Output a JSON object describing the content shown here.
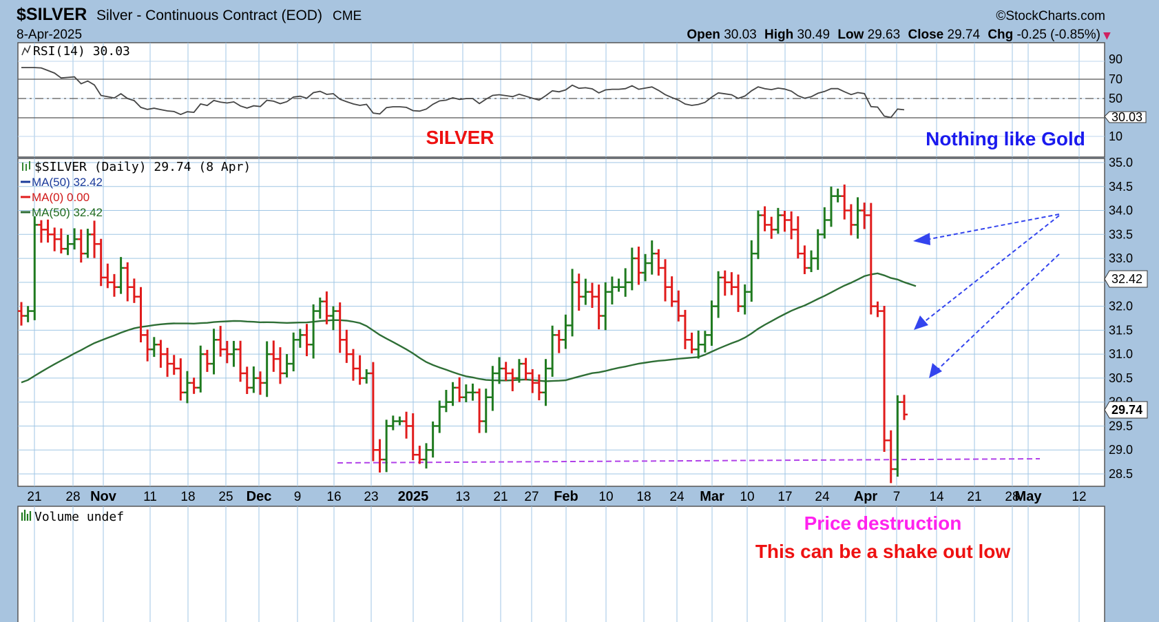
{
  "header": {
    "symbol": "$SILVER",
    "name": "Silver - Continuous Contract (EOD)",
    "exchange": "CME",
    "date": "8-Apr-2025",
    "copyright": "©StockCharts.com",
    "ohlc": {
      "open_label": "Open",
      "open": "30.03",
      "high_label": "High",
      "high": "30.49",
      "low_label": "Low",
      "low": "29.63",
      "close_label": "Close",
      "close": "29.74",
      "chg_label": "Chg",
      "chg": "-0.25 (-0.85%)",
      "down_arrow": "▼"
    }
  },
  "rsi_panel": {
    "legend": "RSI(14) 30.03",
    "last_value": "30.03",
    "ticks": [
      "90",
      "70",
      "50",
      "10"
    ]
  },
  "price_panel": {
    "legend_main": "$SILVER (Daily) 29.74 (8 Apr)",
    "legend_ma1": "MA(50) 32.42",
    "legend_ma2": "MA(0) 0.00",
    "legend_ma3": "MA(50) 32.42",
    "last_ma": "32.42",
    "last_close": "29.74",
    "ticks": [
      "35.0",
      "34.5",
      "34.0",
      "33.5",
      "33.0",
      "32.5",
      "32.0",
      "31.5",
      "31.0",
      "30.5",
      "30.0",
      "29.5",
      "29.0",
      "28.5"
    ]
  },
  "volume_panel": {
    "legend": "Volume undef"
  },
  "annotations": {
    "silver": "SILVER",
    "gold": "Nothing like Gold",
    "price_destruction": "Price destruction",
    "shake_out": "This can be a shake out low"
  },
  "colors": {
    "up_bar": "#1f7a1f",
    "down_bar": "#e01b1b",
    "ma_line": "#2e6e35",
    "annot_red": "#ee1111",
    "annot_blue": "#1a1aee",
    "annot_magenta": "#ff22ee",
    "support_line": "#b040e8",
    "arrows": "#3344ee"
  },
  "chart_data": {
    "type": "ohlc",
    "x_labels": [
      {
        "label": "21",
        "bold": false
      },
      {
        "label": "28",
        "bold": false
      },
      {
        "label": "Nov",
        "bold": true
      },
      {
        "label": "11",
        "bold": false
      },
      {
        "label": "18",
        "bold": false
      },
      {
        "label": "25",
        "bold": false
      },
      {
        "label": "Dec",
        "bold": true
      },
      {
        "label": "9",
        "bold": false
      },
      {
        "label": "16",
        "bold": false
      },
      {
        "label": "23",
        "bold": false
      },
      {
        "label": "2025",
        "bold": true
      },
      {
        "label": "13",
        "bold": false
      },
      {
        "label": "21",
        "bold": false
      },
      {
        "label": "27",
        "bold": false
      },
      {
        "label": "Feb",
        "bold": true
      },
      {
        "label": "10",
        "bold": false
      },
      {
        "label": "18",
        "bold": false
      },
      {
        "label": "24",
        "bold": false
      },
      {
        "label": "Mar",
        "bold": true
      },
      {
        "label": "10",
        "bold": false
      },
      {
        "label": "17",
        "bold": false
      },
      {
        "label": "24",
        "bold": false
      },
      {
        "label": "Apr",
        "bold": true
      },
      {
        "label": "7",
        "bold": false
      },
      {
        "label": "14",
        "bold": false
      },
      {
        "label": "21",
        "bold": false
      },
      {
        "label": "28",
        "bold": false
      },
      {
        "label": "May",
        "bold": true
      },
      {
        "label": "12",
        "bold": false
      }
    ],
    "price_range": [
      28.5,
      35.0
    ],
    "close": [
      31.8,
      31.9,
      33.7,
      33.6,
      33.5,
      33.4,
      33.2,
      33.3,
      33.4,
      33.1,
      33.5,
      33.3,
      32.6,
      32.5,
      32.4,
      32.8,
      32.4,
      32.2,
      31.4,
      31.1,
      31.2,
      31.0,
      30.8,
      30.7,
      30.2,
      30.4,
      30.3,
      31.0,
      30.8,
      31.3,
      31.1,
      31.0,
      31.1,
      30.6,
      30.3,
      30.5,
      30.4,
      31.0,
      30.9,
      30.6,
      30.8,
      31.3,
      31.4,
      31.2,
      31.9,
      32.1,
      31.8,
      31.9,
      31.3,
      31.0,
      30.7,
      30.5,
      30.6,
      29.0,
      28.8,
      29.5,
      29.6,
      29.6,
      29.5,
      28.9,
      28.8,
      29.0,
      29.5,
      29.9,
      30.0,
      30.3,
      30.1,
      30.2,
      30.2,
      29.6,
      30.1,
      30.6,
      30.7,
      30.6,
      30.5,
      30.8,
      30.6,
      30.4,
      30.2,
      30.7,
      31.4,
      31.3,
      31.6,
      32.5,
      32.2,
      32.3,
      32.2,
      31.8,
      32.3,
      32.4,
      32.4,
      32.5,
      33.0,
      32.7,
      32.9,
      33.1,
      32.8,
      32.4,
      32.1,
      31.8,
      31.3,
      31.1,
      31.2,
      31.4,
      32.0,
      32.6,
      32.5,
      32.4,
      32.0,
      32.3,
      33.1,
      33.9,
      33.7,
      33.6,
      33.9,
      33.8,
      33.6,
      33.1,
      32.8,
      33.0,
      33.5,
      33.8,
      34.3,
      34.3,
      34.0,
      33.7,
      34.0,
      33.9,
      32.0,
      31.9,
      29.2,
      28.6,
      30.0,
      29.74
    ]
  }
}
